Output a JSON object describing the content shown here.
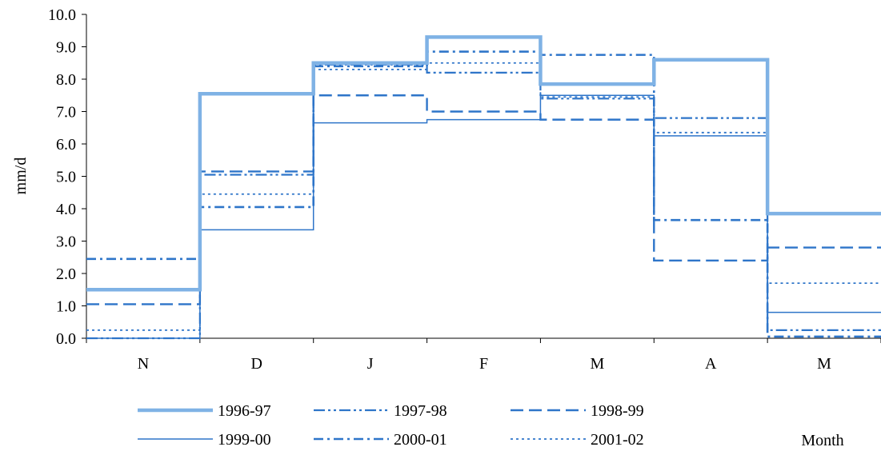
{
  "chart_data": {
    "type": "line",
    "title": "",
    "xlabel": "Month",
    "ylabel": "mm/d",
    "ylim": [
      0,
      10
    ],
    "y_ticks": [
      "0.0",
      "1.0",
      "2.0",
      "3.0",
      "4.0",
      "5.0",
      "6.0",
      "7.0",
      "8.0",
      "9.0",
      "10.0"
    ],
    "categories": [
      "N",
      "D",
      "J",
      "F",
      "M",
      "A",
      "M"
    ],
    "step": true,
    "grid": false,
    "legend_position": "bottom",
    "series": [
      {
        "name": "1996-97",
        "values": [
          1.5,
          7.55,
          8.5,
          9.3,
          7.85,
          8.6,
          3.85
        ],
        "color": "#7fb2e5",
        "style": "solid-thick"
      },
      {
        "name": "1997-98",
        "values": [
          0.0,
          5.05,
          8.45,
          8.2,
          7.4,
          6.8,
          0.25
        ],
        "color": "#2e75c9",
        "style": "dash-dot-dot"
      },
      {
        "name": "1998-99",
        "values": [
          1.05,
          5.15,
          7.5,
          7.0,
          6.75,
          2.4,
          2.8
        ],
        "color": "#2e75c9",
        "style": "long-dash"
      },
      {
        "name": "1999-00",
        "values": [
          0.0,
          3.35,
          6.65,
          6.75,
          7.5,
          6.25,
          0.8
        ],
        "color": "#2e75c9",
        "style": "solid-thin"
      },
      {
        "name": "2000-01",
        "values": [
          2.45,
          4.05,
          8.4,
          8.85,
          8.75,
          3.65,
          0.05
        ],
        "color": "#2e75c9",
        "style": "dash-dot"
      },
      {
        "name": "2001-02",
        "values": [
          0.25,
          4.45,
          8.3,
          8.5,
          7.45,
          6.35,
          1.7
        ],
        "color": "#2e75c9",
        "style": "dotted"
      }
    ]
  }
}
